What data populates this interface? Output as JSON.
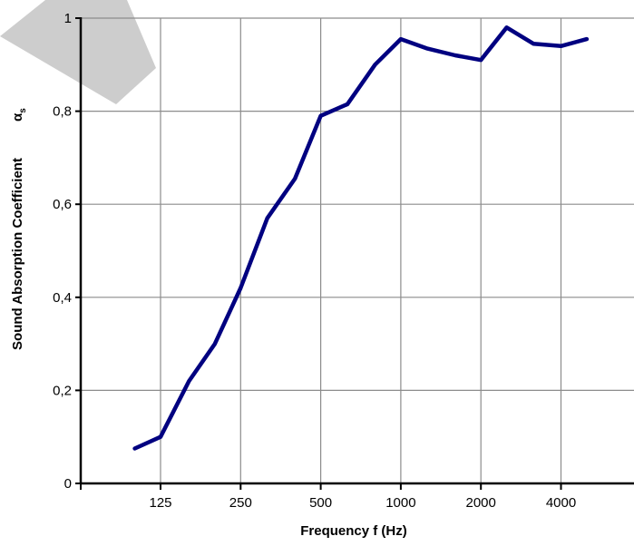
{
  "chart_data": {
    "type": "line",
    "xlabel": "Frequency f (Hz)",
    "ylabel": "Sound Absorption Coefficient",
    "ylabel_symbol": "α",
    "ylabel_subscript": "s",
    "x_scale": "log2",
    "x_tick_labels": [
      "125",
      "250",
      "500",
      "1000",
      "2000",
      "4000"
    ],
    "x_ticks": [
      125,
      250,
      500,
      1000,
      2000,
      4000
    ],
    "y_tick_labels": [
      "0",
      "0,2",
      "0,4",
      "0,6",
      "0,8",
      "1"
    ],
    "y_ticks": [
      0,
      0.2,
      0.4,
      0.6,
      0.8,
      1
    ],
    "ylim": [
      0,
      1
    ],
    "grid": true,
    "series": [
      {
        "color": "#000080",
        "x": [
          100,
          125,
          160,
          200,
          250,
          315,
          400,
          500,
          630,
          800,
          1000,
          1250,
          1600,
          2000,
          2500,
          3150,
          4000,
          5000
        ],
        "y": [
          0.075,
          0.1,
          0.22,
          0.3,
          0.42,
          0.57,
          0.655,
          0.79,
          0.815,
          0.9,
          0.955,
          0.935,
          0.92,
          0.91,
          0.98,
          0.945,
          0.94,
          0.955
        ]
      }
    ],
    "watermark_color": "#c8c8c8"
  }
}
